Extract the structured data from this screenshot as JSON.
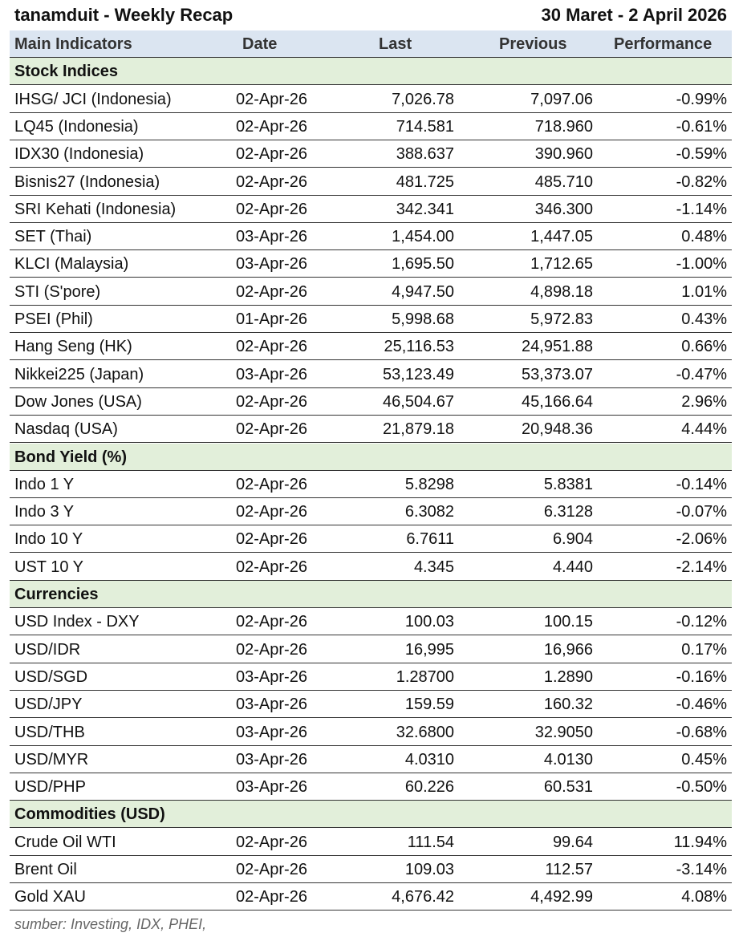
{
  "header": {
    "title": "tanamduit - Weekly Recap",
    "date_range": "30 Maret - 2 April 2026"
  },
  "table": {
    "columns": [
      "Main Indicators",
      "Date",
      "Last",
      "Previous",
      "Performance"
    ],
    "sections": [
      {
        "title": "Stock Indices",
        "rows": [
          [
            "IHSG/ JCI (Indonesia)",
            "02-Apr-26",
            "7,026.78",
            "7,097.06",
            "-0.99%"
          ],
          [
            "LQ45 (Indonesia)",
            "02-Apr-26",
            "714.581",
            "718.960",
            "-0.61%"
          ],
          [
            "IDX30 (Indonesia)",
            "02-Apr-26",
            "388.637",
            "390.960",
            "-0.59%"
          ],
          [
            "Bisnis27 (Indonesia)",
            "02-Apr-26",
            "481.725",
            "485.710",
            "-0.82%"
          ],
          [
            "SRI Kehati (Indonesia)",
            "02-Apr-26",
            "342.341",
            "346.300",
            "-1.14%"
          ],
          [
            "SET (Thai)",
            "03-Apr-26",
            "1,454.00",
            "1,447.05",
            "0.48%"
          ],
          [
            "KLCI (Malaysia)",
            "03-Apr-26",
            "1,695.50",
            "1,712.65",
            "-1.00%"
          ],
          [
            "STI (S'pore)",
            "02-Apr-26",
            "4,947.50",
            "4,898.18",
            "1.01%"
          ],
          [
            "PSEI (Phil)",
            "01-Apr-26",
            "5,998.68",
            "5,972.83",
            "0.43%"
          ],
          [
            "Hang Seng (HK)",
            "02-Apr-26",
            "25,116.53",
            "24,951.88",
            "0.66%"
          ],
          [
            "Nikkei225 (Japan)",
            "03-Apr-26",
            "53,123.49",
            "53,373.07",
            "-0.47%"
          ],
          [
            "Dow Jones (USA)",
            "02-Apr-26",
            "46,504.67",
            "45,166.64",
            "2.96%"
          ],
          [
            "Nasdaq (USA)",
            "02-Apr-26",
            "21,879.18",
            "20,948.36",
            "4.44%"
          ]
        ]
      },
      {
        "title": "Bond Yield (%)",
        "rows": [
          [
            "Indo 1 Y",
            "02-Apr-26",
            "5.8298",
            "5.8381",
            "-0.14%"
          ],
          [
            "Indo 3 Y",
            "02-Apr-26",
            "6.3082",
            "6.3128",
            "-0.07%"
          ],
          [
            "Indo 10 Y",
            "02-Apr-26",
            "6.7611",
            "6.904",
            "-2.06%"
          ],
          [
            "UST 10 Y",
            "02-Apr-26",
            "4.345",
            "4.440",
            "-2.14%"
          ]
        ]
      },
      {
        "title": "Currencies",
        "rows": [
          [
            "USD Index - DXY",
            "02-Apr-26",
            "100.03",
            "100.15",
            "-0.12%"
          ],
          [
            "USD/IDR",
            "02-Apr-26",
            "16,995",
            "16,966",
            "0.17%"
          ],
          [
            "USD/SGD",
            "03-Apr-26",
            "1.28700",
            "1.2890",
            "-0.16%"
          ],
          [
            "USD/JPY",
            "03-Apr-26",
            "159.59",
            "160.32",
            "-0.46%"
          ],
          [
            "USD/THB",
            "03-Apr-26",
            "32.6800",
            "32.9050",
            "-0.68%"
          ],
          [
            "USD/MYR",
            "03-Apr-26",
            "4.0310",
            "4.0130",
            "0.45%"
          ],
          [
            "USD/PHP",
            "03-Apr-26",
            "60.226",
            "60.531",
            "-0.50%"
          ]
        ]
      },
      {
        "title": "Commodities (USD)",
        "rows": [
          [
            "Crude Oil WTI",
            "02-Apr-26",
            "111.54",
            "99.64",
            "11.94%"
          ],
          [
            "Brent Oil",
            "02-Apr-26",
            "109.03",
            "112.57",
            "-3.14%"
          ],
          [
            "Gold XAU",
            "02-Apr-26",
            "4,676.42",
            "4,492.99",
            "4.08%"
          ]
        ]
      }
    ]
  },
  "footer": {
    "source": "sumber: Investing, IDX, PHEI,"
  }
}
